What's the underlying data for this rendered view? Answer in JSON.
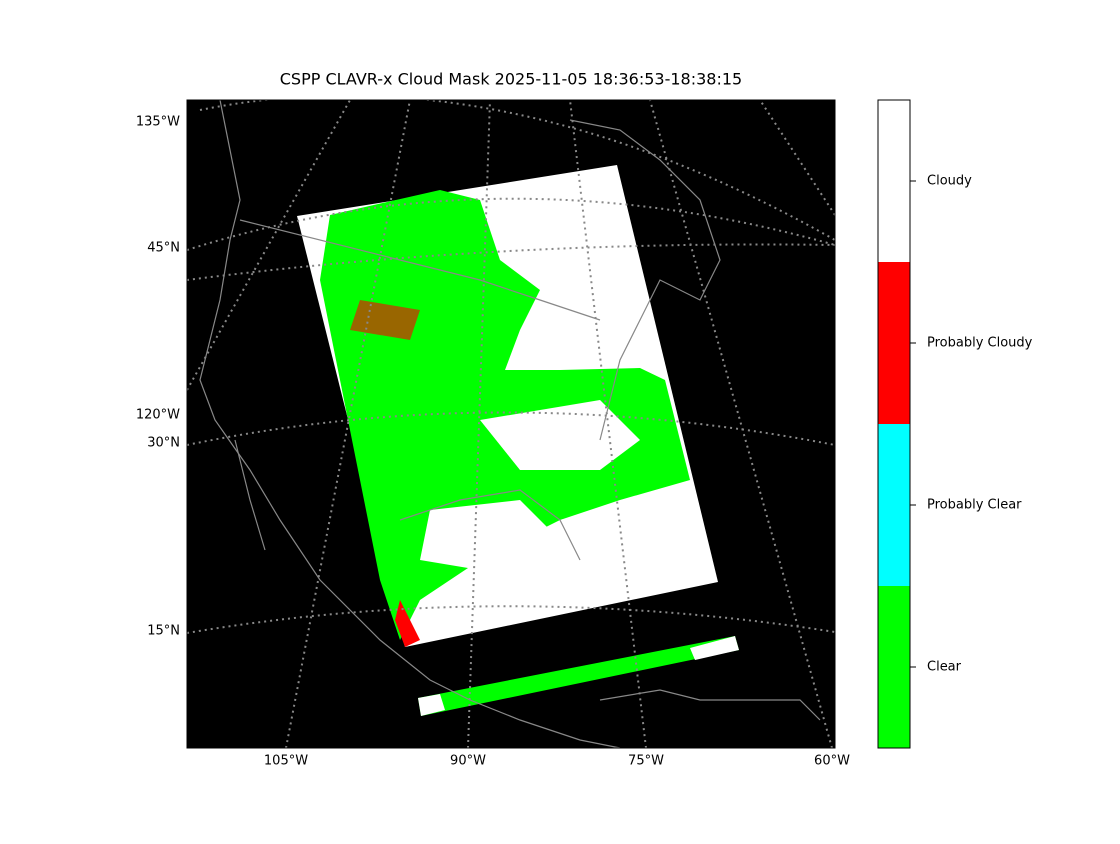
{
  "title": "CSPP CLAVR-x Cloud Mask 2025-11-05 18:36:53-18:38:15",
  "map": {
    "left_labels": [
      "135°W",
      "45°N",
      "120°W",
      "30°N",
      "15°N"
    ],
    "bottom_labels": [
      "105°W",
      "90°W",
      "75°W",
      "60°W"
    ]
  },
  "colorbar": {
    "classes": [
      {
        "label": "Cloudy",
        "color": "#ffffff"
      },
      {
        "label": "Probably Cloudy",
        "color": "#ff0000"
      },
      {
        "label": "Probably Clear",
        "color": "#00ffff"
      },
      {
        "label": "Clear",
        "color": "#00ff00"
      }
    ]
  }
}
